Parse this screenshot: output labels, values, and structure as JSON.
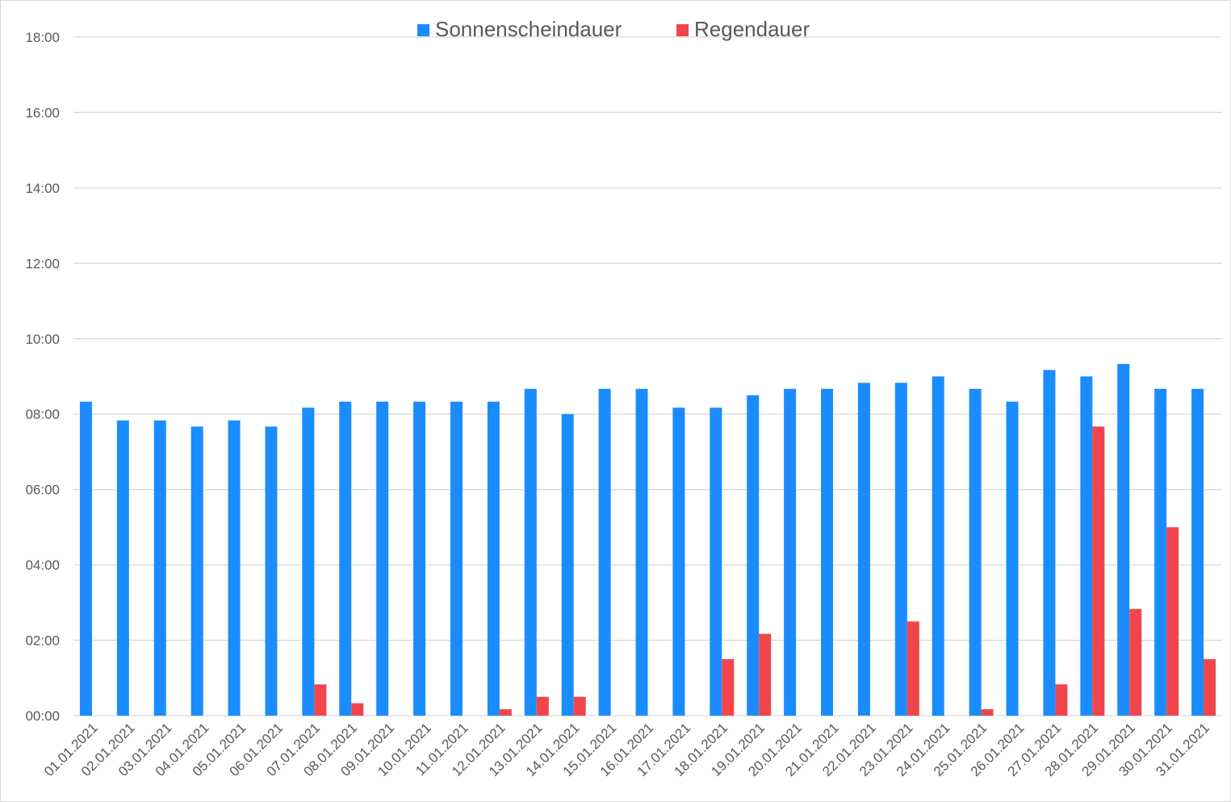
{
  "chart_data": {
    "type": "bar",
    "title": "",
    "xlabel": "",
    "ylabel": "",
    "ylim_hours": [
      0,
      18
    ],
    "y_tick_labels": [
      "00:00",
      "02:00",
      "04:00",
      "06:00",
      "08:00",
      "10:00",
      "12:00",
      "14:00",
      "16:00",
      "18:00"
    ],
    "grid": true,
    "legend_position": "top-center",
    "categories": [
      "01.01.2021",
      "02.01.2021",
      "03.01.2021",
      "04.01.2021",
      "05.01.2021",
      "06.01.2021",
      "07.01.2021",
      "08.01.2021",
      "09.01.2021",
      "10.01.2021",
      "11.01.2021",
      "12.01.2021",
      "13.01.2021",
      "14.01.2021",
      "15.01.2021",
      "16.01.2021",
      "17.01.2021",
      "18.01.2021",
      "19.01.2021",
      "20.01.2021",
      "21.01.2021",
      "22.01.2021",
      "23.01.2021",
      "24.01.2021",
      "25.01.2021",
      "26.01.2021",
      "27.01.2021",
      "28.01.2021",
      "29.01.2021",
      "30.01.2021",
      "31.01.2021"
    ],
    "series": [
      {
        "name": "Sonnenscheindauer",
        "color": "#1a8cff",
        "values_hours": [
          8.33,
          7.83,
          7.83,
          7.67,
          7.83,
          7.67,
          8.17,
          8.33,
          8.33,
          8.33,
          8.33,
          8.33,
          8.67,
          8.0,
          8.67,
          8.67,
          8.17,
          8.17,
          8.5,
          8.67,
          8.67,
          8.83,
          8.83,
          9.0,
          8.67,
          8.33,
          9.17,
          9.0,
          9.33,
          8.67,
          8.67
        ]
      },
      {
        "name": "Regendauer",
        "color": "#f0464b",
        "values_hours": [
          0,
          0,
          0,
          0,
          0,
          0,
          0.83,
          0.33,
          0,
          0,
          0,
          0.17,
          0.5,
          0.5,
          0,
          0,
          0,
          1.5,
          2.17,
          0,
          0,
          0,
          2.5,
          0,
          0.17,
          0,
          0.83,
          7.67,
          2.83,
          5.0,
          1.5
        ]
      }
    ]
  }
}
